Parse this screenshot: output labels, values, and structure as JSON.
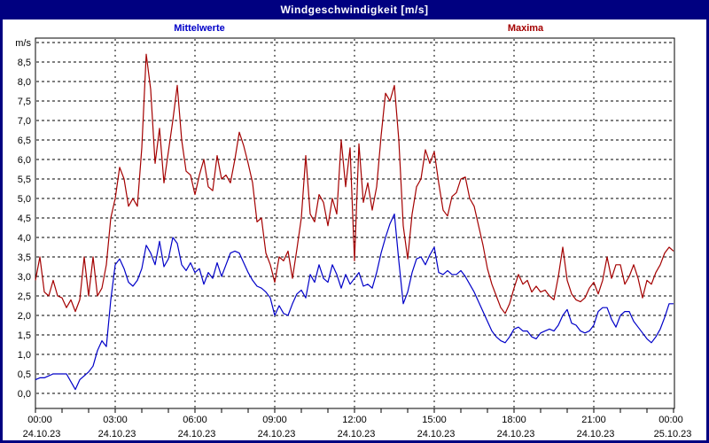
{
  "window": {
    "title": "Windgeschwindigkeit [m/s]"
  },
  "legend": {
    "mean_label": "Mittelwerte",
    "max_label": "Maxima"
  },
  "axes": {
    "y_unit": "m/s",
    "y_tick_labels": [
      "0,0",
      "0,5",
      "1,0",
      "1,5",
      "2,0",
      "2,5",
      "3,0",
      "3,5",
      "4,0",
      "4,5",
      "5,0",
      "5,5",
      "6,0",
      "6,5",
      "7,0",
      "7,5",
      "8,0",
      "8,5"
    ],
    "x_ticks": [
      {
        "time": "00:00",
        "date": "24.10.23"
      },
      {
        "time": "03:00",
        "date": "24.10.23"
      },
      {
        "time": "06:00",
        "date": "24.10.23"
      },
      {
        "time": "09:00",
        "date": "24.10.23"
      },
      {
        "time": "12:00",
        "date": "24.10.23"
      },
      {
        "time": "15:00",
        "date": "24.10.23"
      },
      {
        "time": "18:00",
        "date": "24.10.23"
      },
      {
        "time": "21:00",
        "date": "24.10.23"
      },
      {
        "time": "00:00",
        "date": "25.10.23"
      }
    ]
  },
  "colors": {
    "frame_navy": "#000080",
    "mean_blue": "#0000C8",
    "max_red": "#A40000",
    "grid_black": "#000000",
    "bg": "#FFFFFF"
  },
  "chart_data": {
    "type": "line",
    "title": "Windgeschwindigkeit [m/s]",
    "ylabel": "m/s",
    "ylim": [
      0,
      9.1
    ],
    "y_gridline_step": 0.5,
    "grid": "dashed",
    "legend_position": "top",
    "x_range": [
      "24.10.23 00:00",
      "25.10.23 00:00"
    ],
    "x_interval_minutes": 10,
    "x_major_tick_hours": 3,
    "x_minor_tick_hours": 1,
    "series": [
      {
        "name": "Mittelwerte",
        "color": "#0000C8",
        "values": [
          0.35,
          0.4,
          0.4,
          0.45,
          0.5,
          0.5,
          0.5,
          0.5,
          0.3,
          0.1,
          0.35,
          0.45,
          0.55,
          0.7,
          1.1,
          1.35,
          1.2,
          2.4,
          3.3,
          3.45,
          3.2,
          2.85,
          2.75,
          2.9,
          3.2,
          3.8,
          3.6,
          3.3,
          3.9,
          3.25,
          3.45,
          4.0,
          3.85,
          3.3,
          3.15,
          3.35,
          3.1,
          3.2,
          2.8,
          3.1,
          2.95,
          3.35,
          3.0,
          3.3,
          3.6,
          3.65,
          3.6,
          3.35,
          3.1,
          2.9,
          2.75,
          2.7,
          2.6,
          2.45,
          2.0,
          2.25,
          2.05,
          2.0,
          2.3,
          2.55,
          2.65,
          2.45,
          3.05,
          2.85,
          3.3,
          2.95,
          2.85,
          3.3,
          3.05,
          2.7,
          3.05,
          2.8,
          2.95,
          3.1,
          2.75,
          2.8,
          2.7,
          3.1,
          3.6,
          4.0,
          4.35,
          4.6,
          3.4,
          2.3,
          2.6,
          3.1,
          3.45,
          3.5,
          3.3,
          3.55,
          3.75,
          3.1,
          3.05,
          3.15,
          3.05,
          3.05,
          3.15,
          3.0,
          2.8,
          2.6,
          2.35,
          2.1,
          1.85,
          1.6,
          1.45,
          1.35,
          1.3,
          1.45,
          1.65,
          1.7,
          1.6,
          1.6,
          1.45,
          1.4,
          1.55,
          1.6,
          1.65,
          1.6,
          1.75,
          2.0,
          2.15,
          1.8,
          1.75,
          1.6,
          1.55,
          1.6,
          1.75,
          2.1,
          2.2,
          2.2,
          1.9,
          1.7,
          2.0,
          2.1,
          2.1,
          1.85,
          1.7,
          1.55,
          1.4,
          1.3,
          1.45,
          1.65,
          1.95,
          2.3,
          2.3
        ]
      },
      {
        "name": "Maxima",
        "color": "#A40000",
        "values": [
          2.9,
          3.5,
          2.6,
          2.5,
          2.9,
          2.5,
          2.45,
          2.2,
          2.4,
          2.1,
          2.4,
          3.5,
          2.5,
          3.5,
          2.5,
          2.7,
          3.3,
          4.5,
          5.0,
          5.8,
          5.5,
          4.8,
          5.0,
          4.8,
          6.3,
          8.7,
          7.8,
          5.9,
          6.8,
          5.4,
          6.2,
          7.0,
          7.9,
          6.5,
          5.7,
          5.6,
          5.1,
          5.6,
          6.0,
          5.3,
          5.2,
          6.1,
          5.5,
          5.6,
          5.4,
          6.0,
          6.7,
          6.35,
          5.9,
          5.4,
          4.4,
          4.5,
          3.6,
          3.3,
          2.85,
          3.5,
          3.4,
          3.65,
          2.95,
          3.7,
          4.5,
          6.1,
          4.6,
          4.4,
          5.1,
          4.9,
          4.3,
          5.0,
          4.6,
          6.5,
          5.3,
          6.3,
          3.4,
          6.4,
          4.9,
          5.4,
          4.7,
          5.3,
          6.6,
          7.7,
          7.5,
          7.9,
          6.5,
          4.3,
          3.45,
          4.6,
          5.3,
          5.5,
          6.25,
          5.9,
          6.2,
          5.4,
          4.7,
          4.55,
          5.05,
          5.15,
          5.5,
          5.55,
          5.0,
          4.8,
          4.3,
          3.8,
          3.2,
          2.8,
          2.5,
          2.2,
          2.05,
          2.3,
          2.7,
          3.05,
          2.8,
          2.9,
          2.6,
          2.75,
          2.6,
          2.65,
          2.5,
          2.4,
          3.0,
          3.75,
          2.9,
          2.55,
          2.4,
          2.35,
          2.45,
          2.7,
          2.85,
          2.55,
          2.9,
          3.5,
          2.95,
          3.3,
          3.3,
          2.8,
          3.0,
          3.3,
          2.95,
          2.45,
          2.9,
          2.8,
          3.1,
          3.3,
          3.6,
          3.75,
          3.65
        ]
      }
    ]
  }
}
